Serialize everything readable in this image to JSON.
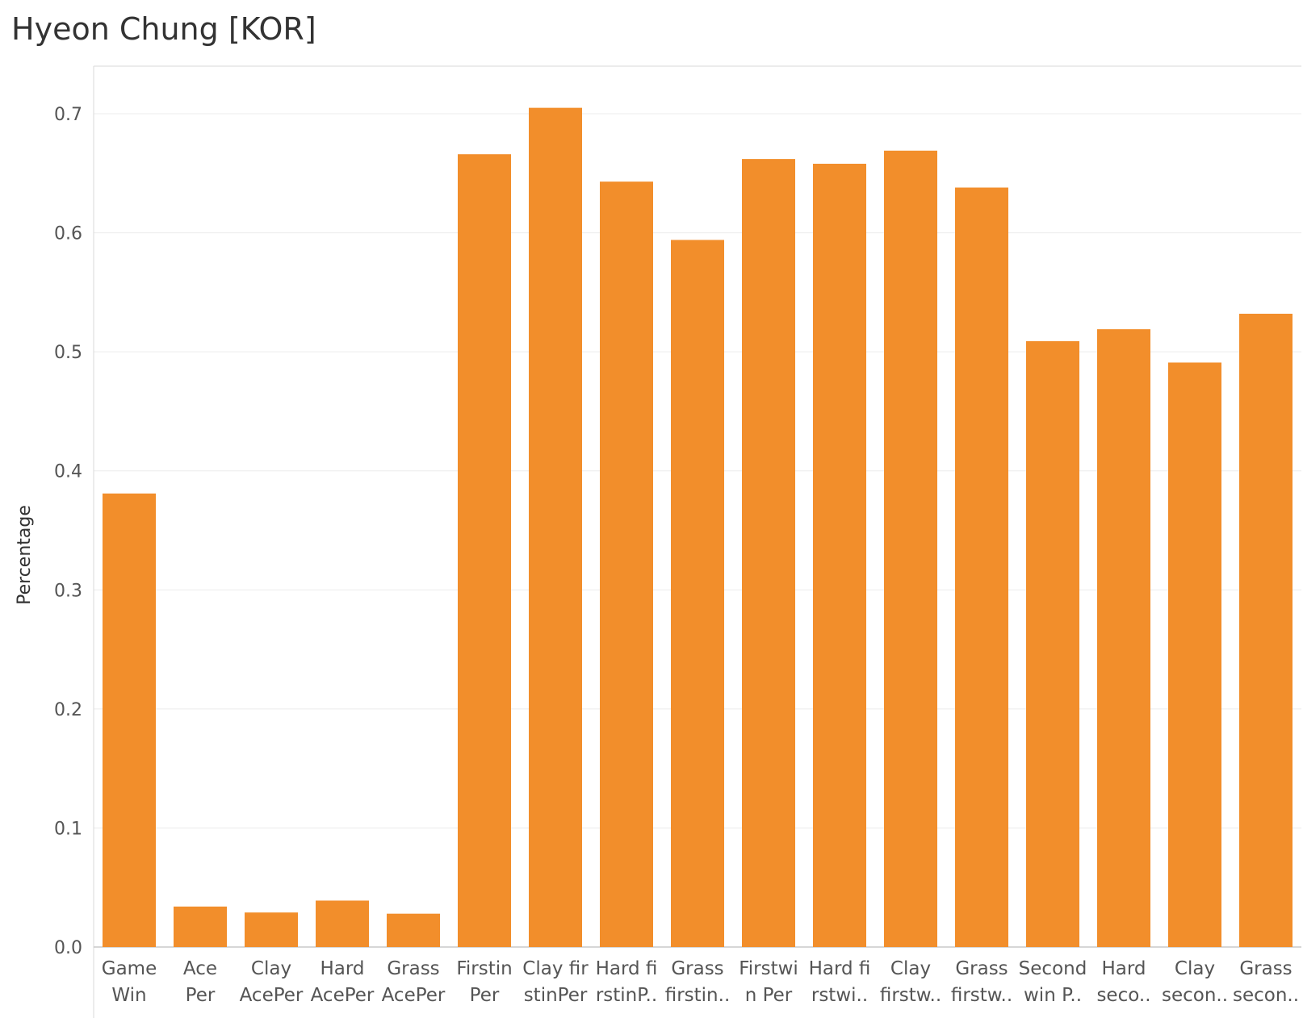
{
  "chart_data": {
    "type": "bar",
    "title": "Hyeon Chung [KOR]",
    "ylabel": "Percentage",
    "xlabel": "",
    "ylim": [
      0,
      0.74
    ],
    "yticks": [
      "0.0",
      "0.1",
      "0.2",
      "0.3",
      "0.4",
      "0.5",
      "0.6",
      "0.7"
    ],
    "grid": true,
    "bar_color": "#F28E2B",
    "categories": [
      [
        "Game",
        "Win"
      ],
      [
        "Ace",
        "Per"
      ],
      [
        "Clay",
        "AcePer"
      ],
      [
        "Hard",
        "AcePer"
      ],
      [
        "Grass",
        "AcePer"
      ],
      [
        "Firstin",
        "Per"
      ],
      [
        "Clay fir",
        "stinPer"
      ],
      [
        "Hard fi",
        "rstinP.."
      ],
      [
        "Grass",
        "firstin.."
      ],
      [
        "Firstwi",
        "n Per"
      ],
      [
        "Hard fi",
        "rstwi.."
      ],
      [
        "Clay",
        "firstw.."
      ],
      [
        "Grass",
        "firstw.."
      ],
      [
        "Second",
        "win P.."
      ],
      [
        "Hard",
        "seco.."
      ],
      [
        "Clay",
        "secon.."
      ],
      [
        "Grass",
        "secon.."
      ]
    ],
    "values": [
      0.381,
      0.034,
      0.029,
      0.039,
      0.028,
      0.666,
      0.705,
      0.643,
      0.594,
      0.662,
      0.658,
      0.669,
      0.638,
      0.509,
      0.519,
      0.491,
      0.532
    ]
  }
}
